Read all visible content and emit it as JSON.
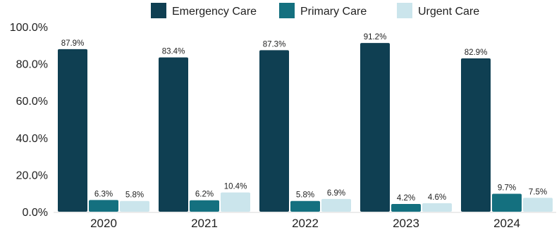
{
  "chart_data": {
    "type": "bar",
    "categories": [
      "2020",
      "2021",
      "2022",
      "2023",
      "2024"
    ],
    "series": [
      {
        "name": "Emergency Care",
        "color": "#0f3f52",
        "values": [
          87.9,
          83.4,
          87.3,
          91.2,
          82.9
        ],
        "labels": [
          "87.9%",
          "83.4%",
          "87.3%",
          "91.2%",
          "82.9%"
        ]
      },
      {
        "name": "Primary Care",
        "color": "#14707f",
        "values": [
          6.3,
          6.2,
          5.8,
          4.2,
          9.7
        ],
        "labels": [
          "6.3%",
          "6.2%",
          "5.8%",
          "4.2%",
          "9.7%"
        ]
      },
      {
        "name": "Urgent Care",
        "color": "#cbe5ec",
        "values": [
          5.8,
          10.4,
          6.9,
          4.6,
          7.5
        ],
        "labels": [
          "5.8%",
          "10.4%",
          "6.9%",
          "4.6%",
          "7.5%"
        ]
      }
    ],
    "yticks": [
      0,
      20,
      40,
      60,
      80,
      100
    ],
    "ytick_labels": [
      "0.0%",
      "20.0%",
      "40.0%",
      "60.0%",
      "80.0%",
      "100.0%"
    ],
    "ylim": [
      0,
      100
    ],
    "legend": "top-center",
    "grid": false
  }
}
